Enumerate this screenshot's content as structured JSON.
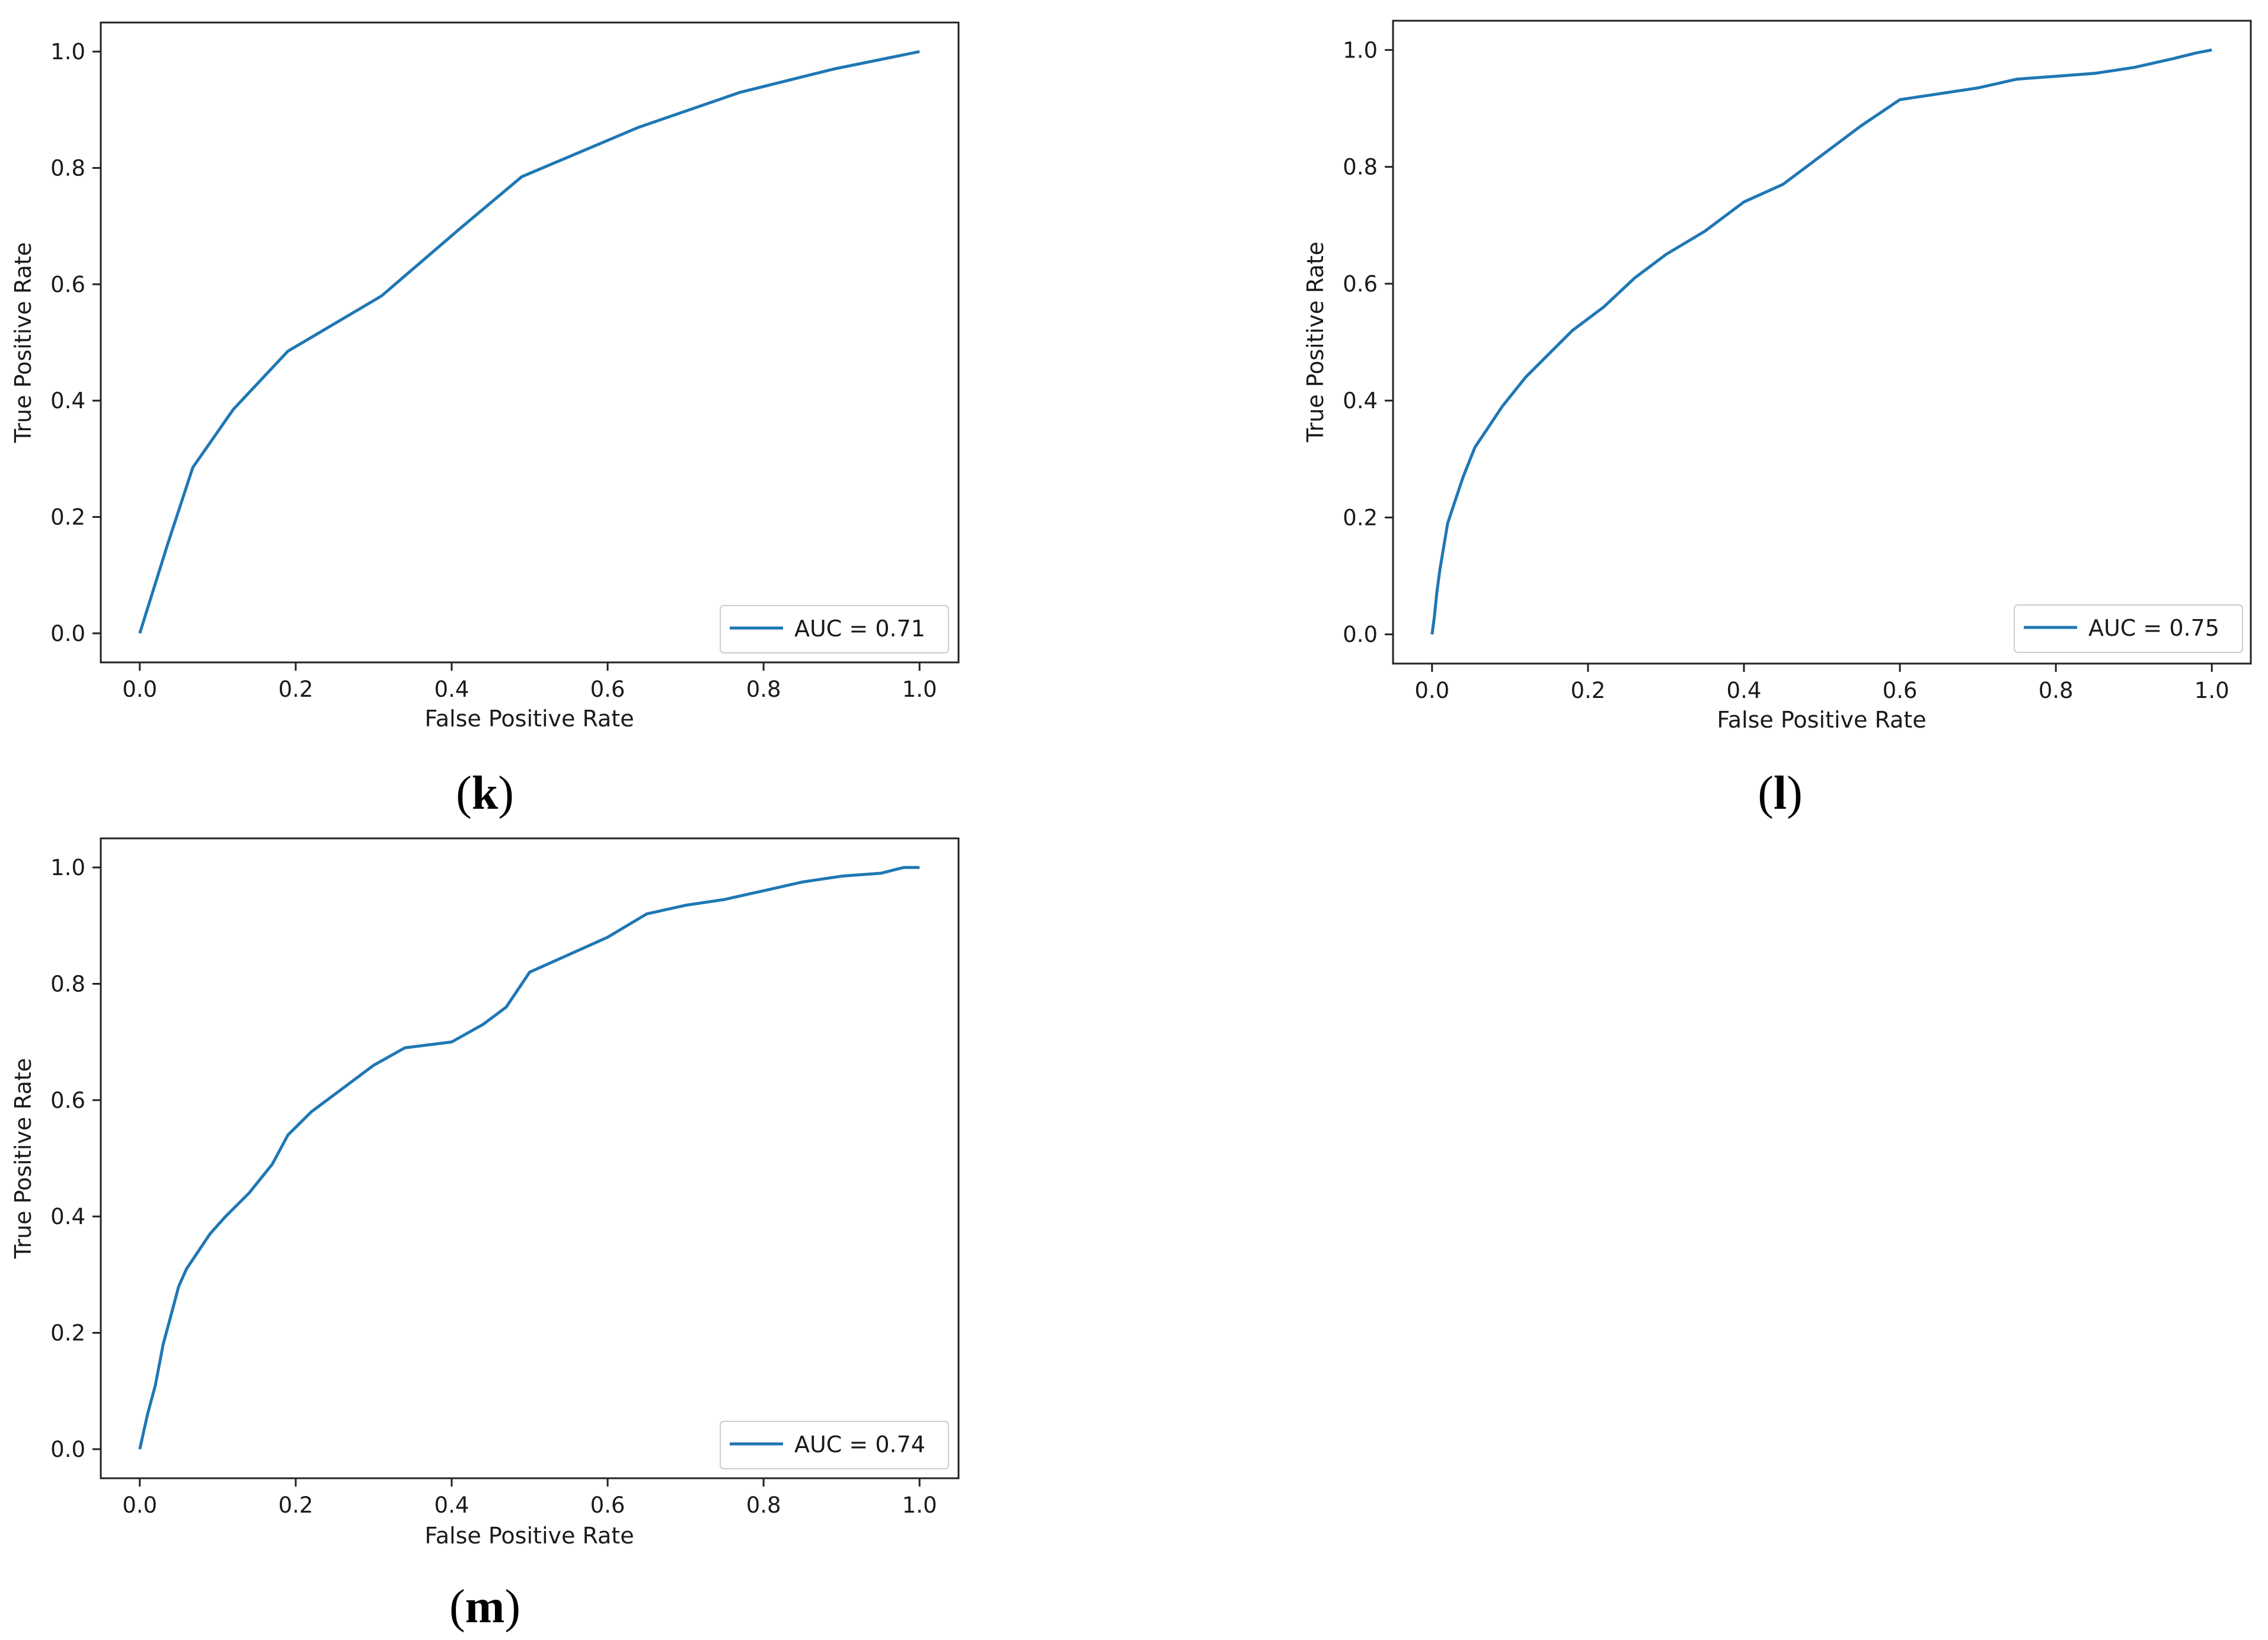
{
  "colors": {
    "line": "#1f77b4",
    "frame": "#222222",
    "legend_border": "#cccccc"
  },
  "chart_data": [
    {
      "type": "line",
      "panel": "k",
      "xlabel": "False Positive Rate",
      "ylabel": "True Positive Rate",
      "xlim": [
        -0.05,
        1.05
      ],
      "ylim": [
        -0.05,
        1.05
      ],
      "xticks": [
        "0.0",
        "0.2",
        "0.4",
        "0.6",
        "0.8",
        "1.0"
      ],
      "yticks": [
        "0.0",
        "0.2",
        "0.4",
        "0.6",
        "0.8",
        "1.0"
      ],
      "legend": "AUC = 0.71",
      "legend_position": "lower-right",
      "series": [
        {
          "name": "AUC = 0.71",
          "x": [
            0.0,
            0.035,
            0.068,
            0.12,
            0.19,
            0.31,
            0.41,
            0.49,
            0.64,
            0.77,
            0.89,
            1.0
          ],
          "y": [
            0.0,
            0.15,
            0.285,
            0.385,
            0.485,
            0.58,
            0.695,
            0.785,
            0.87,
            0.93,
            0.97,
            1.0
          ]
        }
      ]
    },
    {
      "type": "line",
      "panel": "l",
      "xlabel": "False Positive Rate",
      "ylabel": "True Positive Rate",
      "xlim": [
        -0.05,
        1.05
      ],
      "ylim": [
        -0.05,
        1.05
      ],
      "xticks": [
        "0.0",
        "0.2",
        "0.4",
        "0.6",
        "0.8",
        "1.0"
      ],
      "yticks": [
        "0.0",
        "0.2",
        "0.4",
        "0.6",
        "0.8",
        "1.0"
      ],
      "legend": "AUC = 0.75",
      "legend_position": "lower-right",
      "series": [
        {
          "name": "AUC = 0.75",
          "x": [
            0.0,
            0.003,
            0.006,
            0.01,
            0.015,
            0.02,
            0.03,
            0.04,
            0.055,
            0.07,
            0.09,
            0.12,
            0.15,
            0.18,
            0.22,
            0.26,
            0.3,
            0.35,
            0.4,
            0.45,
            0.5,
            0.55,
            0.6,
            0.65,
            0.7,
            0.75,
            0.8,
            0.85,
            0.9,
            0.95,
            0.98,
            1.0
          ],
          "y": [
            0.0,
            0.03,
            0.07,
            0.11,
            0.15,
            0.19,
            0.23,
            0.27,
            0.32,
            0.35,
            0.39,
            0.44,
            0.48,
            0.52,
            0.56,
            0.61,
            0.65,
            0.69,
            0.74,
            0.77,
            0.82,
            0.87,
            0.915,
            0.925,
            0.935,
            0.95,
            0.955,
            0.96,
            0.97,
            0.985,
            0.995,
            1.0
          ]
        }
      ]
    },
    {
      "type": "line",
      "panel": "m",
      "xlabel": "False Positive Rate",
      "ylabel": "True Positive Rate",
      "xlim": [
        -0.05,
        1.05
      ],
      "ylim": [
        -0.05,
        1.05
      ],
      "xticks": [
        "0.0",
        "0.2",
        "0.4",
        "0.6",
        "0.8",
        "1.0"
      ],
      "yticks": [
        "0.0",
        "0.2",
        "0.4",
        "0.6",
        "0.8",
        "1.0"
      ],
      "legend": "AUC = 0.74",
      "legend_position": "lower-right",
      "series": [
        {
          "name": "AUC = 0.74",
          "x": [
            0.0,
            0.005,
            0.01,
            0.02,
            0.03,
            0.04,
            0.05,
            0.06,
            0.07,
            0.09,
            0.11,
            0.14,
            0.17,
            0.19,
            0.22,
            0.26,
            0.3,
            0.34,
            0.4,
            0.44,
            0.47,
            0.5,
            0.55,
            0.6,
            0.65,
            0.7,
            0.75,
            0.8,
            0.85,
            0.9,
            0.95,
            0.98,
            1.0
          ],
          "y": [
            0.0,
            0.03,
            0.06,
            0.11,
            0.18,
            0.23,
            0.28,
            0.31,
            0.33,
            0.37,
            0.4,
            0.44,
            0.49,
            0.54,
            0.58,
            0.62,
            0.66,
            0.69,
            0.7,
            0.73,
            0.76,
            0.82,
            0.85,
            0.88,
            0.92,
            0.935,
            0.945,
            0.96,
            0.975,
            0.985,
            0.99,
            1.0,
            1.0
          ]
        }
      ]
    }
  ],
  "panel_labels": [
    "k",
    "l",
    "m"
  ]
}
